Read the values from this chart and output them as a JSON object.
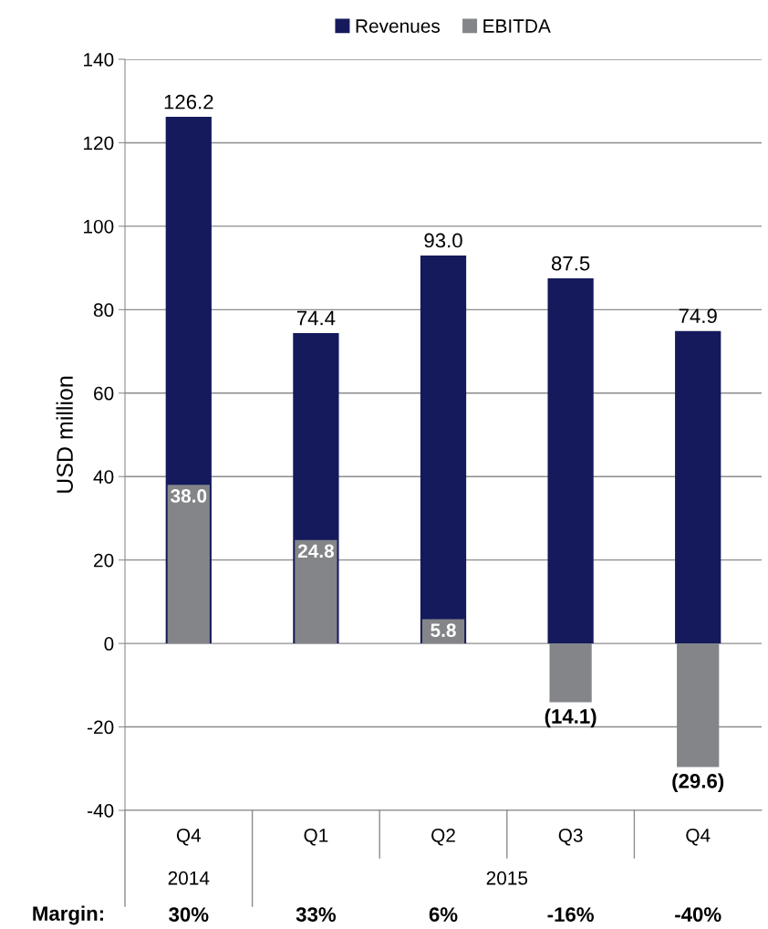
{
  "chart_data": {
    "type": "bar",
    "categories": [
      "Q4",
      "Q1",
      "Q2",
      "Q3",
      "Q4"
    ],
    "series": [
      {
        "name": "Revenues",
        "color": "#141a5c",
        "values": [
          126.2,
          74.4,
          93.0,
          87.5,
          74.9
        ],
        "value_labels": [
          "126.2",
          "74.4",
          "93.0",
          "87.5",
          "74.9"
        ]
      },
      {
        "name": "EBITDA",
        "color": "#848589",
        "values": [
          38.0,
          24.8,
          5.8,
          -14.1,
          -29.6
        ],
        "value_labels": [
          "38.0",
          "24.8",
          "5.8",
          "(14.1)",
          "(29.6)"
        ]
      }
    ],
    "ylabel": "USD million",
    "ylim": [
      -40,
      140
    ],
    "yticks": [
      -40,
      -20,
      0,
      20,
      40,
      60,
      80,
      100,
      120,
      140
    ],
    "grid": "y",
    "legend": "top",
    "annotations": [
      "2014",
      "2015",
      "Margin:",
      "30%",
      "33%",
      "6%",
      "-16%",
      "-40%"
    ]
  }
}
